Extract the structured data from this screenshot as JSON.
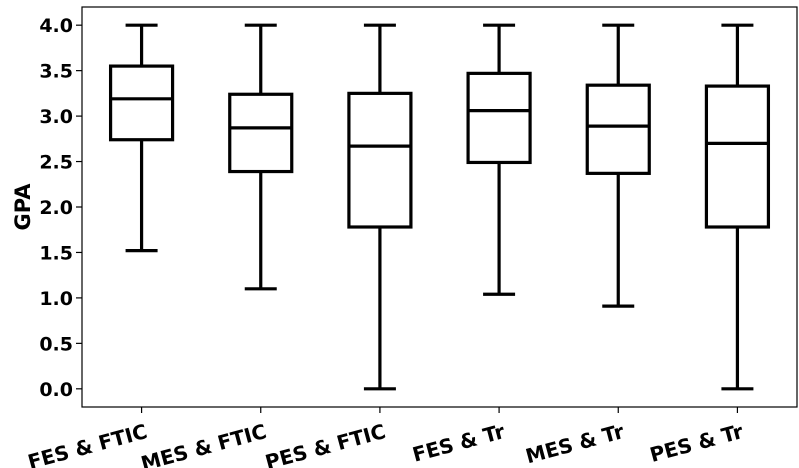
{
  "chart_data": {
    "type": "box",
    "title": "",
    "xlabel": "",
    "ylabel": "GPA",
    "ylim": [
      -0.2,
      4.2
    ],
    "yticks": [
      "0.0",
      "0.5",
      "1.0",
      "1.5",
      "2.0",
      "2.5",
      "3.0",
      "3.5",
      "4.0"
    ],
    "grid": false,
    "categories": [
      "FES & FTIC",
      "MES & FTIC",
      "PES & FTIC",
      "FES & Tr",
      "MES & Tr",
      "PES & Tr"
    ],
    "boxes": [
      {
        "whisker_low": 1.52,
        "q1": 2.74,
        "median": 3.19,
        "q3": 3.55,
        "whisker_high": 4.0
      },
      {
        "whisker_low": 1.1,
        "q1": 2.39,
        "median": 2.87,
        "q3": 3.24,
        "whisker_high": 4.0
      },
      {
        "whisker_low": 0.0,
        "q1": 1.78,
        "median": 2.67,
        "q3": 3.25,
        "whisker_high": 4.0
      },
      {
        "whisker_low": 1.04,
        "q1": 2.49,
        "median": 3.06,
        "q3": 3.47,
        "whisker_high": 4.0
      },
      {
        "whisker_low": 0.91,
        "q1": 2.37,
        "median": 2.89,
        "q3": 3.34,
        "whisker_high": 4.0
      },
      {
        "whisker_low": 0.0,
        "q1": 1.78,
        "median": 2.7,
        "q3": 3.33,
        "whisker_high": 4.0
      }
    ],
    "colors": {
      "stroke": "#000000",
      "background": "#ffffff"
    }
  }
}
